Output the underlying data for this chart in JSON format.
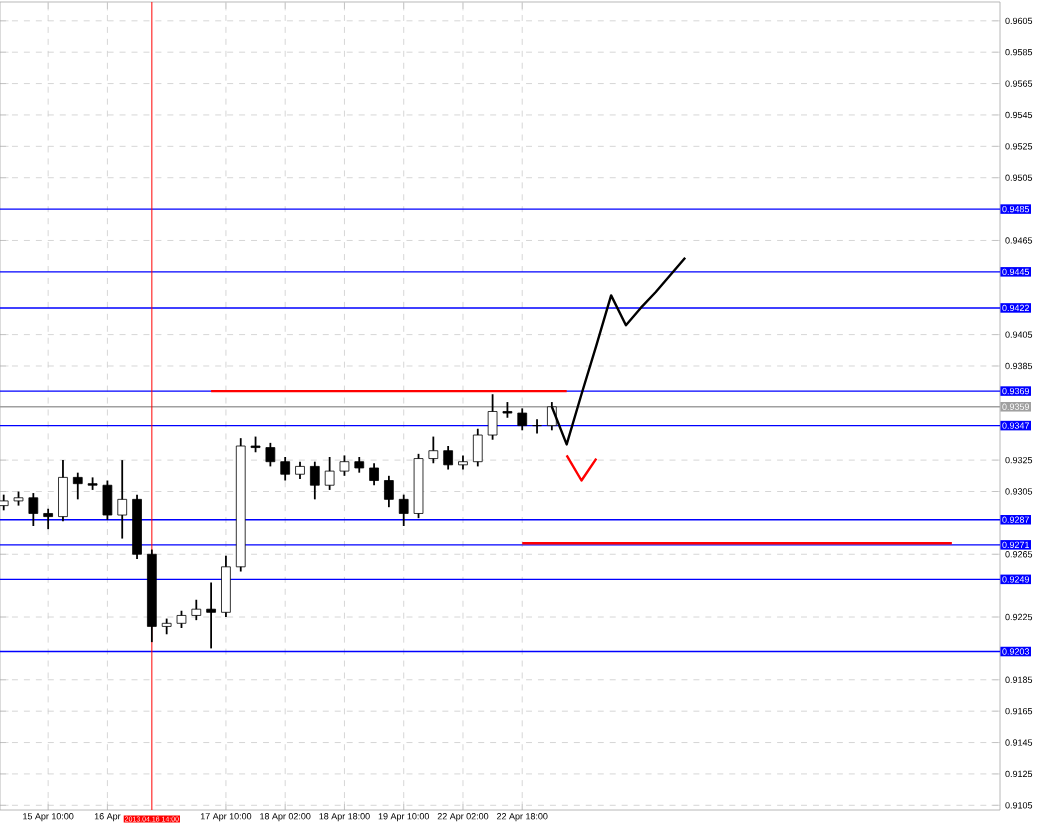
{
  "chart_data": {
    "type": "candlestick",
    "categories": [
      null,
      null,
      null,
      "15 Apr 10:00",
      null,
      null,
      null,
      "16 Apr",
      null,
      null,
      "2013.04.16 14:00",
      null,
      null,
      null,
      null,
      "17 Apr 10:00",
      null,
      null,
      null,
      "18 Apr 02:00",
      null,
      null,
      null,
      "18 Apr 18:00",
      null,
      null,
      null,
      "19 Apr 10:00",
      null,
      null,
      null,
      "22 Apr 02:00",
      null,
      null,
      null,
      "22 Apr 18:00",
      null,
      null,
      null,
      null,
      null,
      null,
      null,
      null,
      null,
      null,
      null,
      null,
      null,
      null,
      null,
      null,
      null,
      null,
      null,
      null,
      null,
      null,
      null,
      null,
      null,
      null,
      null,
      null,
      null,
      null,
      null,
      null
    ],
    "ohlc": [
      [
        0.9296,
        0.9303,
        0.9293,
        0.9299
      ],
      [
        0.9299,
        0.9305,
        0.9296,
        0.9301
      ],
      [
        0.9301,
        0.9304,
        0.9283,
        0.9291
      ],
      [
        0.9291,
        0.9294,
        0.9281,
        0.9289
      ],
      [
        0.9289,
        0.9325,
        0.9286,
        0.9314
      ],
      [
        0.9314,
        0.9317,
        0.93,
        0.931
      ],
      [
        0.931,
        0.9314,
        0.9306,
        0.9309
      ],
      [
        0.9309,
        0.9312,
        0.9287,
        0.929
      ],
      [
        0.929,
        0.9325,
        0.9275,
        0.93
      ],
      [
        0.93,
        0.9303,
        0.9262,
        0.9265
      ],
      [
        0.9265,
        0.9268,
        0.9209,
        0.9219
      ],
      [
        0.9219,
        0.9224,
        0.9214,
        0.9221
      ],
      [
        0.9221,
        0.9229,
        0.9218,
        0.9226
      ],
      [
        0.9226,
        0.9236,
        0.9223,
        0.923
      ],
      [
        0.923,
        0.9247,
        0.9205,
        0.9228
      ],
      [
        0.9228,
        0.9264,
        0.9225,
        0.9257
      ],
      [
        0.9257,
        0.9339,
        0.9254,
        0.9334
      ],
      [
        0.9334,
        0.934,
        0.933,
        0.9333
      ],
      [
        0.9333,
        0.9336,
        0.9321,
        0.9324
      ],
      [
        0.9324,
        0.9327,
        0.9312,
        0.9316
      ],
      [
        0.9316,
        0.9324,
        0.9313,
        0.9321
      ],
      [
        0.9321,
        0.9324,
        0.93,
        0.9309
      ],
      [
        0.9309,
        0.9327,
        0.9306,
        0.9318
      ],
      [
        0.9318,
        0.9328,
        0.9315,
        0.9324
      ],
      [
        0.9324,
        0.9327,
        0.9317,
        0.932
      ],
      [
        0.932,
        0.9323,
        0.9309,
        0.9312
      ],
      [
        0.9312,
        0.9315,
        0.9295,
        0.93
      ],
      [
        0.93,
        0.9303,
        0.9283,
        0.9291
      ],
      [
        0.9291,
        0.9329,
        0.9288,
        0.9326
      ],
      [
        0.9326,
        0.934,
        0.9323,
        0.9331
      ],
      [
        0.9331,
        0.9334,
        0.9319,
        0.9322
      ],
      [
        0.9322,
        0.9328,
        0.9319,
        0.9324
      ],
      [
        0.9324,
        0.9345,
        0.9321,
        0.9341
      ],
      [
        0.9341,
        0.9367,
        0.9338,
        0.9356
      ],
      [
        0.9356,
        0.9362,
        0.9352,
        0.9355
      ],
      [
        0.9355,
        0.9358,
        0.9344,
        0.9347
      ],
      [
        0.9347,
        0.9351,
        0.9342,
        0.9347
      ],
      [
        0.9347,
        0.9362,
        0.9344,
        0.9359
      ],
      null,
      null,
      null,
      null,
      null,
      null,
      null,
      null,
      null,
      null,
      null,
      null,
      null,
      null,
      null,
      null,
      null,
      null,
      null,
      null,
      null,
      null,
      null,
      null,
      null,
      null,
      null,
      null,
      null,
      null
    ],
    "color": "#000000",
    "series": [
      {
        "type": "line",
        "color": "#ff0000",
        "values": [
          null,
          null,
          null,
          null,
          null,
          null,
          null,
          null,
          null,
          null,
          null,
          null,
          null,
          null,
          0.9369,
          0.9369,
          0.9369,
          0.9369,
          0.9369,
          0.9369,
          0.9369,
          0.9369,
          0.9369,
          0.9369,
          0.9369,
          0.9369,
          0.9369,
          0.9369,
          0.9369,
          0.9369,
          0.9369,
          0.9369,
          0.9369,
          0.9369,
          0.9369,
          0.9369,
          0.9369,
          0.9369,
          0.9369,
          null,
          null,
          null,
          null,
          null,
          null,
          null,
          null,
          null,
          null,
          null,
          null,
          null,
          null,
          null,
          null,
          null,
          null,
          null,
          null,
          null,
          null,
          null,
          null,
          null,
          null,
          null,
          null,
          null
        ]
      },
      {
        "type": "line",
        "color": "#ff0000",
        "values": [
          null,
          null,
          null,
          null,
          null,
          null,
          null,
          null,
          null,
          null,
          null,
          null,
          null,
          null,
          null,
          null,
          null,
          null,
          null,
          null,
          null,
          null,
          null,
          null,
          null,
          null,
          null,
          null,
          null,
          null,
          null,
          null,
          null,
          null,
          null,
          0.9272,
          0.9272,
          0.9272,
          0.9272,
          0.9272,
          0.9272,
          0.9272,
          0.9272,
          0.9272,
          0.9272,
          0.9272,
          0.9272,
          0.9272,
          0.9272,
          0.9272,
          0.9272,
          0.9272,
          0.9272,
          0.9272,
          0.9272,
          0.9272,
          0.9272,
          0.9272,
          0.9272,
          0.9272,
          0.9272,
          0.9272,
          0.9272,
          0.9272,
          0.9272,
          null,
          null,
          null
        ]
      },
      {
        "type": "line",
        "color": "#000000",
        "values": [
          null,
          null,
          null,
          null,
          null,
          null,
          null,
          null,
          null,
          null,
          null,
          null,
          null,
          null,
          null,
          null,
          null,
          null,
          null,
          null,
          null,
          null,
          null,
          null,
          null,
          null,
          null,
          null,
          null,
          null,
          null,
          null,
          null,
          null,
          null,
          null,
          null,
          0.9359,
          0.9335,
          0.9367,
          0.9398,
          0.943,
          0.9411,
          0.9422,
          0.9432,
          0.9443,
          0.9454,
          null,
          null,
          null,
          null,
          null,
          null,
          null,
          null,
          null,
          null,
          null,
          null,
          null,
          null,
          null,
          null,
          null,
          null,
          null,
          null,
          null
        ]
      },
      {
        "type": "line",
        "color": "#ff0000",
        "values": [
          null,
          null,
          null,
          null,
          null,
          null,
          null,
          null,
          null,
          null,
          null,
          null,
          null,
          null,
          null,
          null,
          null,
          null,
          null,
          null,
          null,
          null,
          null,
          null,
          null,
          null,
          null,
          null,
          null,
          null,
          null,
          null,
          null,
          null,
          null,
          null,
          null,
          null,
          0.9328,
          0.9312,
          0.9326,
          null,
          null,
          null,
          null,
          null,
          null,
          null,
          null,
          null,
          null,
          null,
          null,
          null,
          null,
          null,
          null,
          null,
          null,
          null,
          null,
          null,
          null,
          null,
          null,
          null,
          null,
          null
        ]
      }
    ],
    "ylim": [
      0.9102,
      0.9617
    ],
    "yticks": [
      0.9105,
      0.9125,
      0.9145,
      0.9165,
      0.9185,
      0.9225,
      0.9265,
      0.9305,
      0.9325,
      0.9385,
      0.9405,
      0.9465,
      0.9505,
      0.9525,
      0.9545,
      0.9565,
      0.9585,
      0.9605
    ],
    "grid": true,
    "ref_lines": [
      {
        "axis": "y",
        "value": 0.9485,
        "label": "0.9485",
        "color": "#0000ff"
      },
      {
        "axis": "y",
        "value": 0.9445,
        "label": "0.9445",
        "color": "#0000ff"
      },
      {
        "axis": "y",
        "value": 0.9422,
        "label": "0.9422",
        "color": "#0000ff"
      },
      {
        "axis": "y",
        "value": 0.9369,
        "label": "0.9369",
        "color": "#0000ff"
      },
      {
        "axis": "y",
        "value": 0.9359,
        "label": "0.9359",
        "color": "#a0a0a0"
      },
      {
        "axis": "y",
        "value": 0.9347,
        "label": "0.9347",
        "color": "#0000ff"
      },
      {
        "axis": "y",
        "value": 0.9287,
        "label": "0.9287",
        "color": "#0000ff"
      },
      {
        "axis": "y",
        "value": 0.9271,
        "label": "0.9271",
        "color": "#0000ff"
      },
      {
        "axis": "y",
        "value": 0.9249,
        "label": "0.9249",
        "color": "#0000ff"
      },
      {
        "axis": "y",
        "value": 0.9203,
        "label": "0.9203",
        "color": "#0000ff"
      },
      {
        "axis": "x",
        "value": "2013.04.16 14:00",
        "color": "#ff0000"
      }
    ]
  }
}
